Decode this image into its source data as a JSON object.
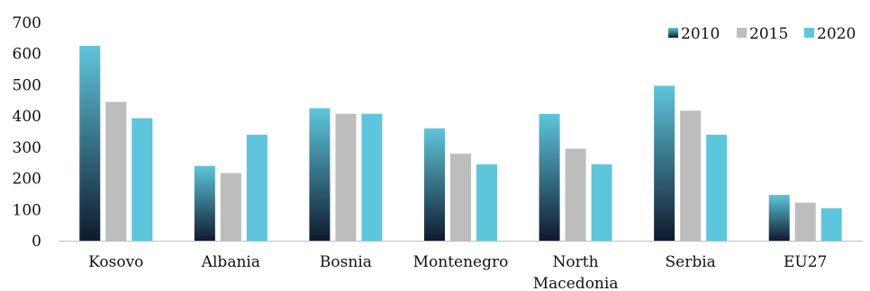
{
  "chart_data": {
    "type": "bar",
    "title": "",
    "xlabel": "",
    "ylabel": "",
    "ylim": [
      0,
      700
    ],
    "yticks": [
      0,
      100,
      200,
      300,
      400,
      500,
      600,
      700
    ],
    "grid": false,
    "legend_position": "top-right",
    "categories": [
      [
        "Kosovo"
      ],
      [
        "Albania"
      ],
      [
        "Bosnia"
      ],
      [
        "Montenegro"
      ],
      [
        "North",
        "Macedonia"
      ],
      [
        "Serbia"
      ],
      [
        "EU27"
      ]
    ],
    "series": [
      {
        "name": "2010",
        "values": [
          625,
          240,
          425,
          360,
          407,
          497,
          147
        ],
        "style": "gradient",
        "color_top": "#5ec6dc",
        "color_bottom": "#0f1a2e"
      },
      {
        "name": "2015",
        "values": [
          445,
          217,
          407,
          279,
          295,
          417,
          122
        ],
        "style": "solid",
        "color": "#bdbdbd"
      },
      {
        "name": "2020",
        "values": [
          393,
          340,
          407,
          245,
          245,
          340,
          104
        ],
        "style": "solid",
        "color": "#5ec6dc"
      }
    ]
  }
}
